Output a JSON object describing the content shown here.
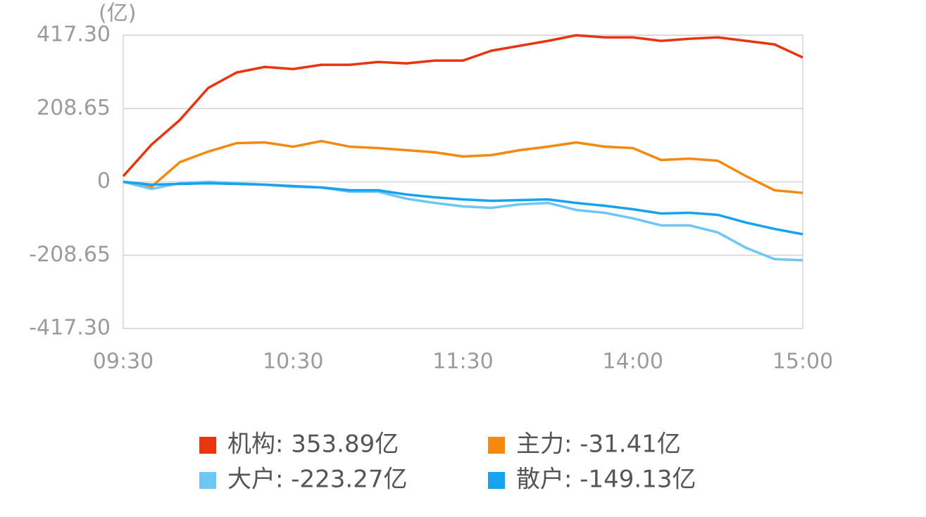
{
  "chart_data": {
    "type": "line",
    "unit": "(亿)",
    "x": [
      0,
      10,
      20,
      30,
      40,
      50,
      60,
      70,
      80,
      90,
      100,
      110,
      120,
      130,
      140,
      150,
      160,
      170,
      180,
      190,
      200,
      210,
      220,
      230,
      240
    ],
    "xlim": [
      0,
      240
    ],
    "xticks": [
      {
        "value": 0,
        "label": "09:30"
      },
      {
        "value": 60,
        "label": "10:30"
      },
      {
        "value": 120,
        "label": "11:30"
      },
      {
        "value": 180,
        "label": "14:00"
      },
      {
        "value": 240,
        "label": "15:00"
      }
    ],
    "ylim": [
      -417.3,
      417.3
    ],
    "yticks": [
      {
        "value": 417.3,
        "label": "417.30"
      },
      {
        "value": 208.65,
        "label": "208.65"
      },
      0,
      {
        "value": -208.65,
        "label": "-208.65"
      },
      {
        "value": -417.3,
        "label": "-417.30"
      }
    ],
    "grid": true,
    "series": [
      {
        "name": "机构: 353.89亿",
        "color": "#e8350f",
        "values": [
          16,
          106,
          176,
          267,
          311,
          327,
          321,
          333,
          333,
          341,
          337,
          345,
          345,
          373,
          387,
          401,
          417,
          411,
          411,
          401,
          407,
          411,
          401,
          391,
          353.89
        ]
      },
      {
        "name": "主力: -31.41亿",
        "color": "#f5880f",
        "values": [
          0,
          -14,
          56,
          86,
          110,
          112,
          100,
          116,
          100,
          96,
          90,
          84,
          72,
          76,
          90,
          100,
          112,
          100,
          96,
          62,
          66,
          60,
          16,
          -24,
          -31.41
        ]
      },
      {
        "name": "大户: -223.27亿",
        "color": "#6ec6f5",
        "values": [
          0,
          -20,
          -4,
          0,
          -4,
          -8,
          -14,
          -16,
          -28,
          -28,
          -48,
          -60,
          -70,
          -74,
          -64,
          -60,
          -80,
          -88,
          -104,
          -124,
          -124,
          -144,
          -188,
          -220,
          -223.27
        ]
      },
      {
        "name": "散户: -149.13亿",
        "color": "#17a2f0",
        "values": [
          0,
          -8,
          -6,
          -4,
          -6,
          -8,
          -12,
          -16,
          -24,
          -24,
          -36,
          -44,
          -50,
          -54,
          -52,
          -50,
          -60,
          -68,
          -78,
          -90,
          -88,
          -94,
          -116,
          -134,
          -149.13
        ]
      }
    ]
  }
}
